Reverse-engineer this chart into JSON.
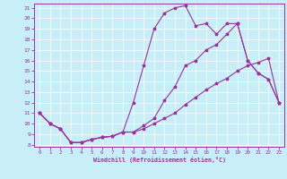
{
  "xlabel": "Windchill (Refroidissement éolien,°C)",
  "x": [
    0,
    1,
    2,
    3,
    4,
    5,
    6,
    7,
    8,
    9,
    10,
    11,
    12,
    13,
    14,
    15,
    16,
    17,
    18,
    19,
    20,
    21,
    22,
    23
  ],
  "upper_y": [
    11,
    10,
    9.5,
    8.2,
    8.2,
    8.5,
    8.7,
    8.8,
    9.2,
    12.0,
    15.5,
    19.0,
    20.5,
    21.0,
    21.2,
    19.3,
    19.5,
    18.5,
    19.5,
    19.5,
    16.0,
    14.8,
    14.2,
    12.0
  ],
  "mid_y": [
    11,
    10,
    9.5,
    8.2,
    8.2,
    8.5,
    8.7,
    8.8,
    9.2,
    9.2,
    9.8,
    10.5,
    12.2,
    13.5,
    15.5,
    16.0,
    17.0,
    17.5,
    18.5,
    19.5,
    16.0,
    14.8,
    14.2,
    12.0
  ],
  "lower_y": [
    11,
    10,
    9.5,
    8.2,
    8.2,
    8.5,
    8.7,
    8.8,
    9.2,
    9.2,
    9.5,
    10.0,
    10.5,
    11.0,
    11.8,
    12.5,
    13.2,
    13.8,
    14.3,
    15.0,
    15.5,
    15.8,
    16.2,
    12.0
  ],
  "line_color": "#993399",
  "bg_color": "#c8eef8",
  "grid_color": "#ffffff",
  "ylim": [
    7.8,
    21.4
  ],
  "xlim": [
    -0.5,
    23.5
  ],
  "yticks": [
    8,
    9,
    10,
    11,
    12,
    13,
    14,
    15,
    16,
    17,
    18,
    19,
    20,
    21
  ],
  "xticks": [
    0,
    1,
    2,
    3,
    4,
    5,
    6,
    7,
    8,
    9,
    10,
    11,
    12,
    13,
    14,
    15,
    16,
    17,
    18,
    19,
    20,
    21,
    22,
    23
  ]
}
